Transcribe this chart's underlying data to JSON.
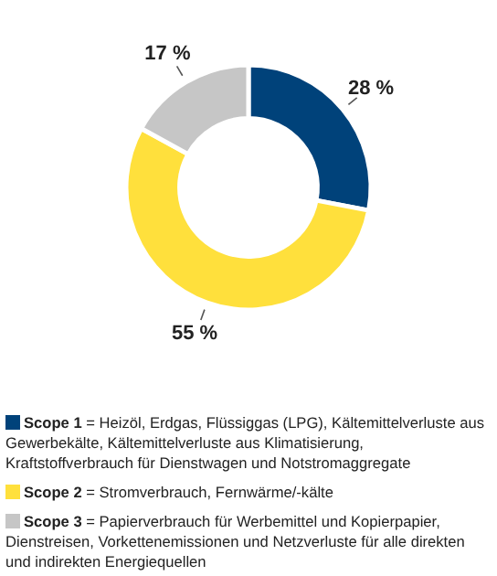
{
  "chart_data": {
    "type": "donut",
    "categories": [
      "Scope 1 = Heizöl, Erdgas, Flüssiggas (LPG), Kältemittelverluste aus Gewerbekälte, Kältemittelverluste aus Klimatisierung, Kraftstoffverbrauch für Dienstwagen und Notstromaggregate",
      "Scope 2 = Stromverbrauch, Fernwärme/-kälte",
      "Scope 3 = Papierverbrauch für Werbemittel und Kopierpapier, Dienstreisen, Vorkettenemissionen und Netzverluste für alle direkten und indirekten Energiequellen"
    ],
    "values": [
      28,
      55,
      17
    ],
    "colors": [
      "#00427a",
      "#ffe03c",
      "#c6c6c6"
    ],
    "value_labels": [
      "28 %",
      "55 %",
      "17 %"
    ],
    "legend": "bottom"
  }
}
